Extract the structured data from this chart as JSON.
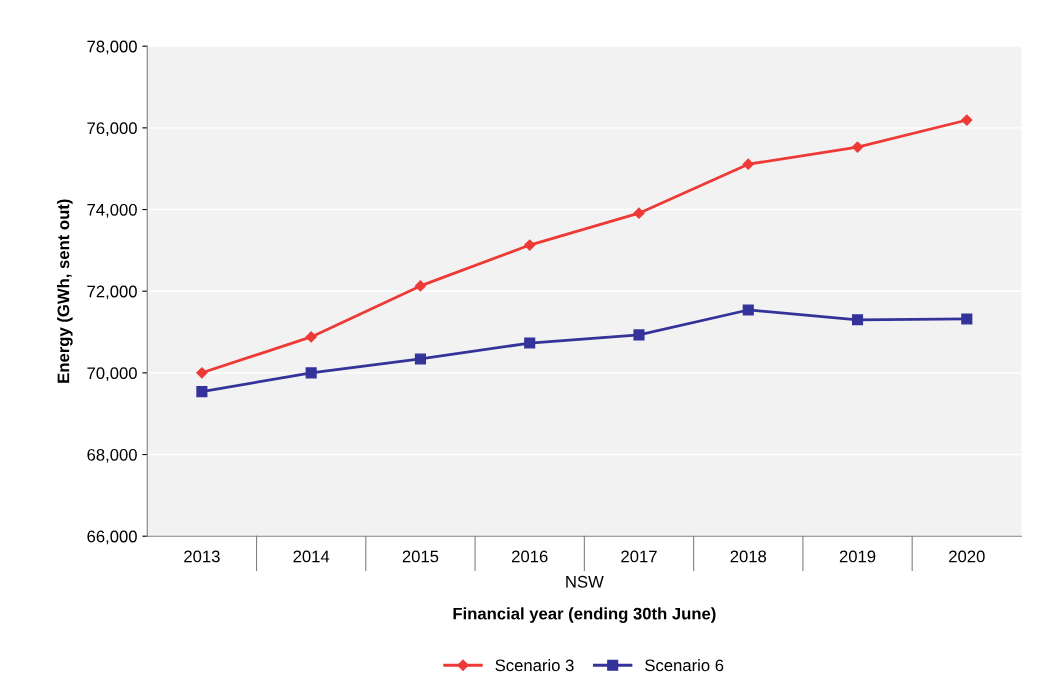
{
  "chart_data": {
    "type": "line",
    "xlabel": "Financial year (ending 30th June)",
    "ylabel": "Energy (GWh, sent out)",
    "annotations": [
      "NSW"
    ],
    "categories": [
      "2013",
      "2014",
      "2015",
      "2016",
      "2017",
      "2018",
      "2019",
      "2020"
    ],
    "series": [
      {
        "name": "Scenario 3",
        "color": "#ee3a36",
        "marker": "diamond",
        "values": [
          70000,
          70880,
          72130,
          73130,
          73910,
          75110,
          75530,
          76190
        ]
      },
      {
        "name": "Scenario 6",
        "color": "#33339a",
        "marker": "square",
        "values": [
          69540,
          70000,
          70340,
          70730,
          70930,
          71540,
          71300,
          71320
        ]
      }
    ],
    "ylim": [
      66000,
      78000
    ],
    "yticks": [
      {
        "value": 66000,
        "label": "66,000"
      },
      {
        "value": 68000,
        "label": "68,000"
      },
      {
        "value": 70000,
        "label": "70,000"
      },
      {
        "value": 72000,
        "label": "72,000"
      },
      {
        "value": 74000,
        "label": "74,000"
      },
      {
        "value": 76000,
        "label": "76,000"
      },
      {
        "value": 78000,
        "label": "78,000"
      }
    ],
    "grid": "y",
    "legend": "bottom",
    "line_style": "solid"
  }
}
